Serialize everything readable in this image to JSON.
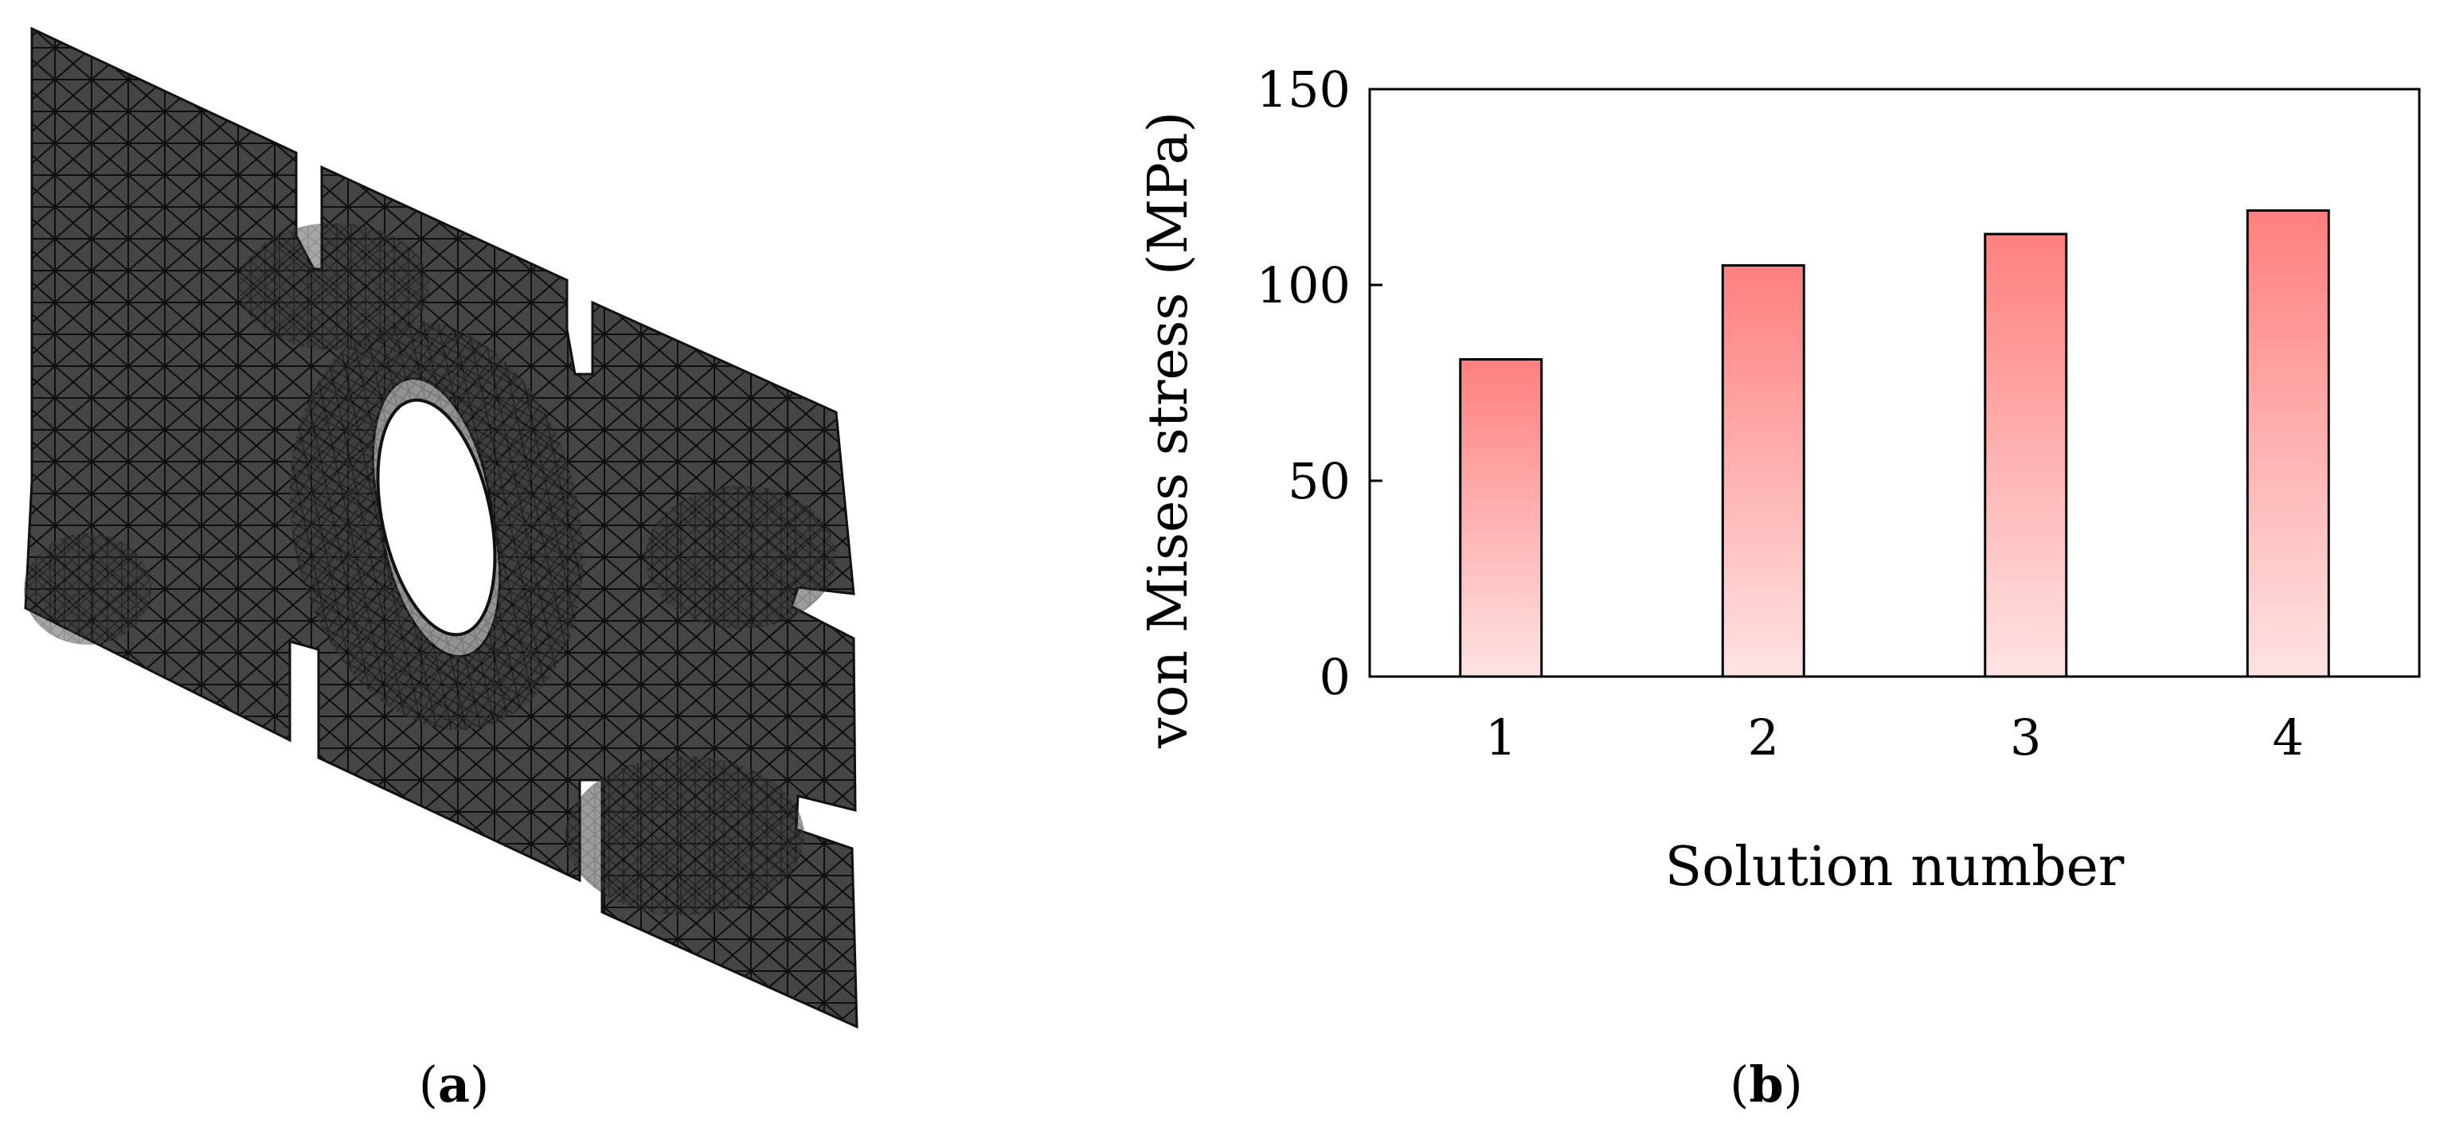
{
  "figure": {
    "panel_a": {
      "caption_open": "(",
      "caption_letter": "a",
      "caption_close": ")"
    },
    "panel_b": {
      "caption_open": "(",
      "caption_letter": "b",
      "caption_close": ")"
    }
  },
  "colors": {
    "mesh_fill": "#454545",
    "mesh_line": "#0f0f0f",
    "bar_top": "#ff7f7f",
    "bar_bottom": "#ffe3e3",
    "bar_stroke": "#000000"
  },
  "chart_data": {
    "type": "bar",
    "title": "",
    "xlabel": "Solution number",
    "ylabel": "von Mises stress (MPa)",
    "categories": [
      "1",
      "2",
      "3",
      "4"
    ],
    "values": [
      81,
      105,
      113,
      119
    ],
    "ylim": [
      0,
      150
    ],
    "yticks": [
      "0",
      "50",
      "100",
      "150"
    ],
    "grid": false,
    "legend": "none"
  }
}
